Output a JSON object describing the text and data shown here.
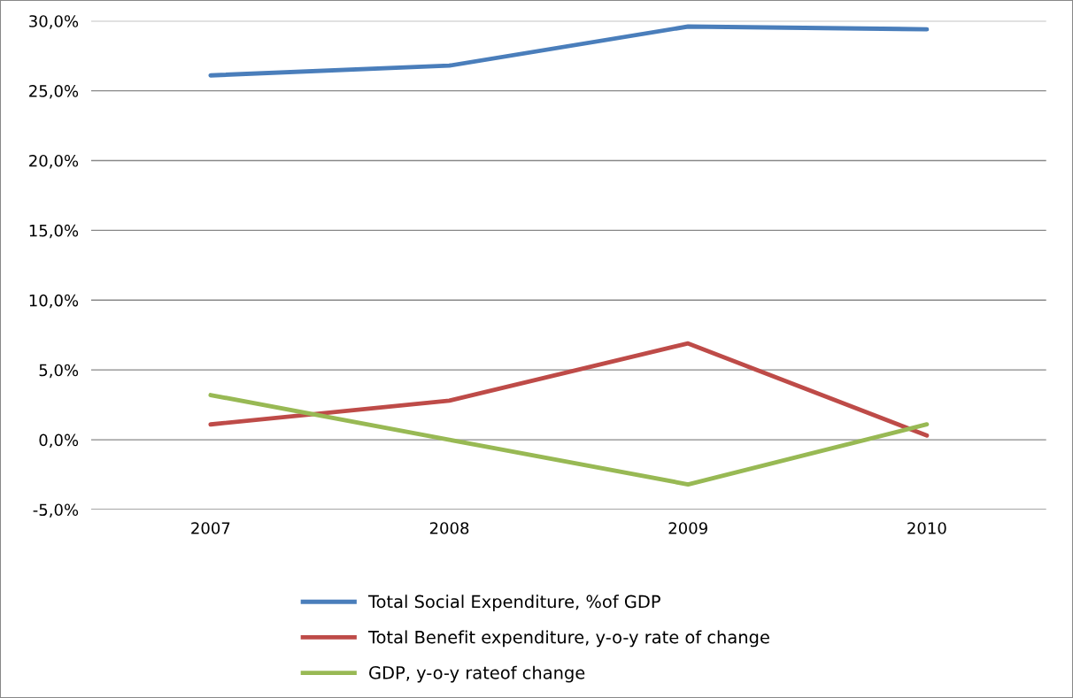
{
  "chart_data": {
    "type": "line",
    "categories": [
      "2007",
      "2008",
      "2009",
      "2010"
    ],
    "series": [
      {
        "name": "Total Social Expenditure, %of GDP",
        "color": "#4a7ebb",
        "values": [
          26.1,
          26.8,
          29.6,
          29.4
        ]
      },
      {
        "name": "Total Benefit expenditure, y-o-y rate of change",
        "color": "#be4b48",
        "values": [
          1.1,
          2.8,
          6.9,
          0.3
        ]
      },
      {
        "name": "GDP, y-o-y rateof change",
        "color": "#98b954",
        "values": [
          3.2,
          0.0,
          -3.2,
          1.1
        ]
      }
    ],
    "ylim": [
      -5,
      30
    ],
    "yticks": [
      {
        "value": -5,
        "label": "-5,0%"
      },
      {
        "value": 0,
        "label": "0,0%"
      },
      {
        "value": 5,
        "label": "5,0%"
      },
      {
        "value": 10,
        "label": "10,0%"
      },
      {
        "value": 15,
        "label": "15,0%"
      },
      {
        "value": 20,
        "label": "20,0%"
      },
      {
        "value": 25,
        "label": "25,0%"
      },
      {
        "value": 30,
        "label": "30,0%"
      }
    ],
    "grid": "y",
    "legend": "bottom",
    "marker": "none",
    "line_style": "solid"
  }
}
